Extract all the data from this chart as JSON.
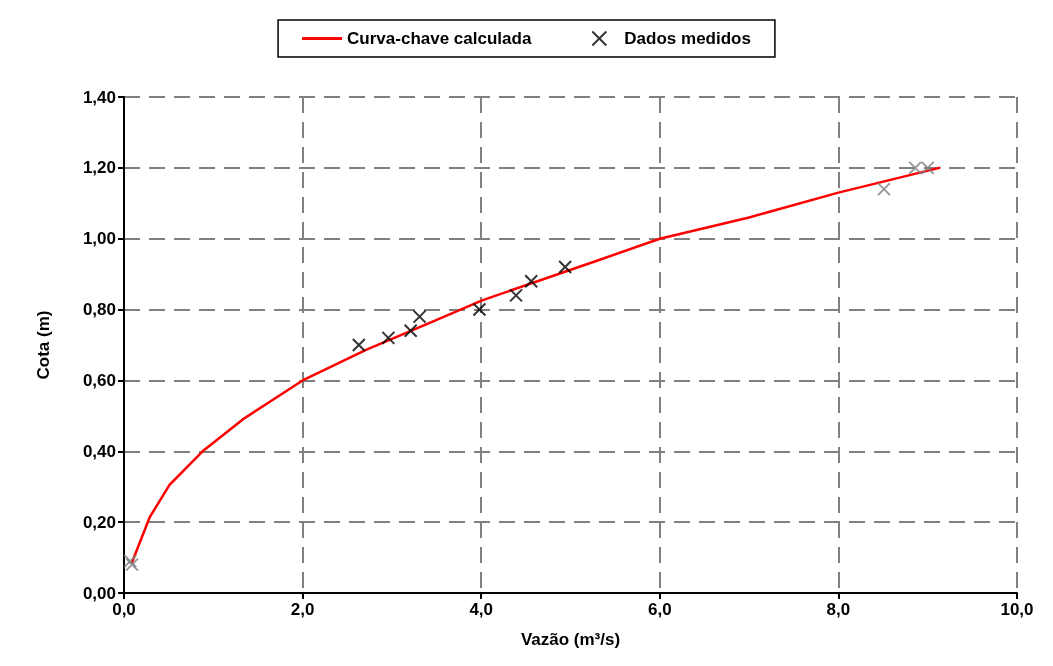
{
  "chart_data": {
    "type": "scatter",
    "xlabel": "Vazão (m³/s)",
    "ylabel": "Cota (m)",
    "xlim": [
      0,
      10
    ],
    "xticks": [
      {
        "value": 0,
        "label": "0,0"
      },
      {
        "value": 2,
        "label": "2,0"
      },
      {
        "value": 4,
        "label": "4,0"
      },
      {
        "value": 6,
        "label": "6,0"
      },
      {
        "value": 8,
        "label": "8,0"
      },
      {
        "value": 10,
        "label": "10,0"
      }
    ],
    "ylim": [
      0,
      1.4
    ],
    "yticks": [
      {
        "value": 0,
        "label": "0,00"
      },
      {
        "value": 0.2,
        "label": "0,20"
      },
      {
        "value": 0.4,
        "label": "0,40"
      },
      {
        "value": 0.6,
        "label": "0,60"
      },
      {
        "value": 0.8,
        "label": "0,80"
      },
      {
        "value": 1.0,
        "label": "1,00"
      },
      {
        "value": 1.2,
        "label": "1,20"
      },
      {
        "value": 1.4,
        "label": "1,40"
      }
    ],
    "grid": true,
    "legend": "top",
    "series": [
      {
        "name": "Curva-chave calculada",
        "type": "line",
        "color": "#ff0000",
        "marker": "none",
        "line_style": "solid",
        "x": [
          0.09,
          0.29,
          0.51,
          0.88,
          1.33,
          2.0,
          2.71,
          3.45,
          4.01,
          5.32,
          6.0,
          7.0,
          8.0,
          9.13
        ],
        "values": [
          0.087,
          0.215,
          0.305,
          0.4,
          0.49,
          0.6,
          0.686,
          0.765,
          0.826,
          0.94,
          1.0,
          1.06,
          1.13,
          1.2
        ]
      },
      {
        "name": "Dados medidos",
        "color": "#000000",
        "marker": "cross",
        "colors": [
          "#808080",
          "#808080",
          "#000000",
          "#000000",
          "#000000",
          "#000000",
          "#000000",
          "#000000",
          "#000000",
          "#000000",
          "#808080",
          "#808080",
          "#808080"
        ],
        "x": [
          0.07,
          0.09,
          2.63,
          2.96,
          3.21,
          3.31,
          3.98,
          4.39,
          4.56,
          4.94,
          8.51,
          8.86,
          9.0
        ],
        "values": [
          0.09,
          0.08,
          0.7,
          0.72,
          0.74,
          0.78,
          0.8,
          0.84,
          0.88,
          0.92,
          1.14,
          1.2,
          1.2
        ]
      }
    ]
  }
}
